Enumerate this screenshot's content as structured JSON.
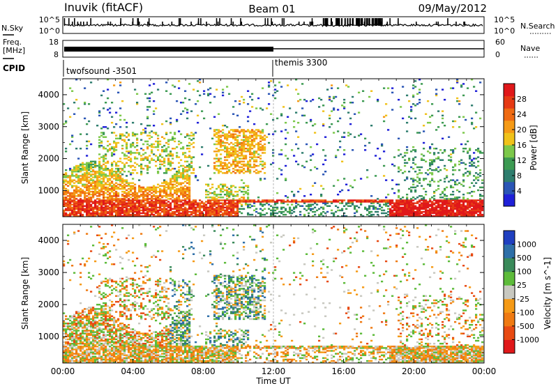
{
  "header": {
    "station": "Inuvik (fitACF)",
    "beam": "Beam 01",
    "date": "09/May/2012"
  },
  "noise_panel": {
    "left_label": "N.Sky",
    "right_label": "N.Search",
    "y_ticks_left": [
      "10^5",
      "10^0"
    ],
    "y_ticks_right": [
      "10^5",
      "10^0"
    ]
  },
  "freq_panel": {
    "left_label_line1": "Freq.",
    "left_label_line2": "[MHz]",
    "right_label": "Nave",
    "y_ticks_left": [
      "18",
      "8"
    ],
    "y_ticks_right": [
      "60",
      "0"
    ]
  },
  "cpid_panel": {
    "label": "CPID",
    "segments": [
      {
        "start_hour": 0,
        "label": "twofsound -3501"
      },
      {
        "start_hour": 12,
        "label": "themis 3300"
      }
    ]
  },
  "x_axis": {
    "label": "Time UT",
    "ticks": [
      "00:00",
      "04:00",
      "08:00",
      "12:00",
      "16:00",
      "20:00",
      "00:00"
    ],
    "range_hours": [
      0,
      24
    ]
  },
  "chart_data": [
    {
      "type": "heatmap",
      "title": "Power",
      "ylabel": "Slant Range [km]",
      "yticks": [
        "1000",
        "2000",
        "3000",
        "4000"
      ],
      "ylim_km": [
        180,
        4500
      ],
      "colorbar": {
        "label": "Power [dB]",
        "ticks": [
          "4",
          "8",
          "12",
          "16",
          "20",
          "24",
          "28"
        ],
        "range": [
          0,
          30
        ]
      },
      "scale_colors": [
        "#1f20d8",
        "#2a55b5",
        "#2e7d6e",
        "#3c9a52",
        "#7cc84a",
        "#f0c21a",
        "#f59a16",
        "#ef6a12",
        "#e63a14",
        "#e0181a"
      ]
    },
    {
      "type": "heatmap",
      "title": "Velocity",
      "ylabel": "Slant Range [km]",
      "yticks": [
        "1000",
        "2000",
        "3000",
        "4000"
      ],
      "ylim_km": [
        180,
        4500
      ],
      "colorbar": {
        "label": "Velocity [m s^-1]",
        "ticks": [
          "1000",
          "500",
          "100",
          "25",
          "-25",
          "-100",
          "-500",
          "-1000"
        ]
      },
      "scale_colors": [
        "#1f3fc0",
        "#2e6fa8",
        "#3a8a5a",
        "#5dbb3a",
        "#c8c8c0",
        "#f59a16",
        "#ef7a12",
        "#e84a12",
        "#e0181a"
      ]
    }
  ]
}
